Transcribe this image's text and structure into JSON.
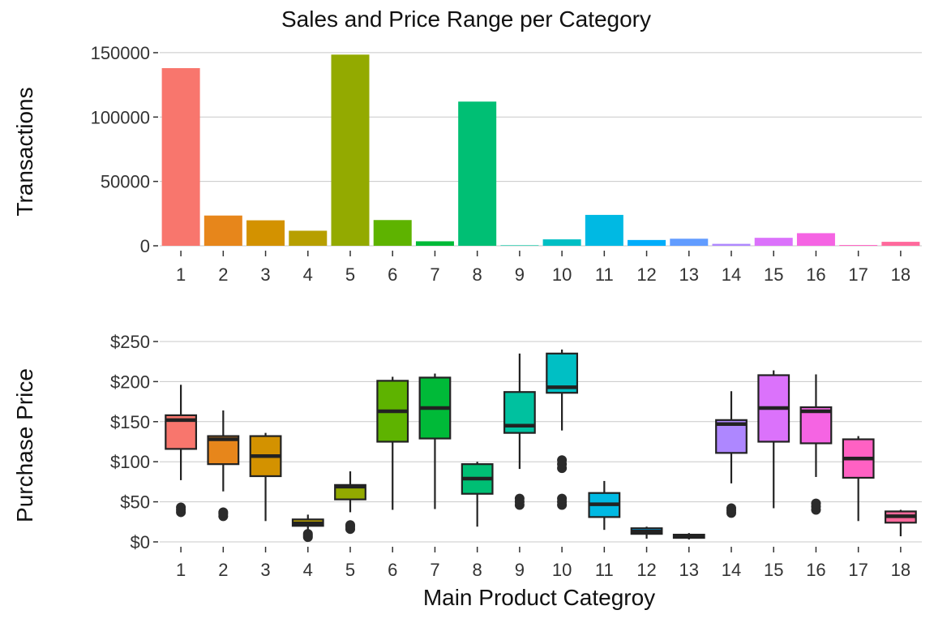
{
  "title": "Sales and Price Range per Category",
  "chart_data": [
    {
      "type": "bar",
      "ylabel": "Transactions",
      "xlabel": "",
      "categories": [
        "1",
        "2",
        "3",
        "4",
        "5",
        "6",
        "7",
        "8",
        "9",
        "10",
        "11",
        "12",
        "13",
        "14",
        "15",
        "16",
        "17",
        "18"
      ],
      "values": [
        138000,
        23500,
        19800,
        11700,
        148500,
        20000,
        3500,
        112000,
        400,
        5000,
        24000,
        4500,
        5500,
        1500,
        6200,
        9800,
        600,
        3100
      ],
      "ylim": [
        0,
        155000
      ],
      "yticks": [
        0,
        50000,
        100000,
        150000
      ],
      "ytick_labels": [
        "0",
        "50000",
        "100000",
        "150000"
      ],
      "grid": true,
      "legend": "none"
    },
    {
      "type": "box",
      "ylabel": "Purchase Price",
      "xlabel": "Main Product Categroy",
      "categories": [
        "1",
        "2",
        "3",
        "4",
        "5",
        "6",
        "7",
        "8",
        "9",
        "10",
        "11",
        "12",
        "13",
        "14",
        "15",
        "16",
        "17",
        "18"
      ],
      "boxes": [
        {
          "whislo": 77,
          "q1": 116,
          "med": 152,
          "q3": 158,
          "whishi": 196,
          "fliers": [
            37,
            40,
            43
          ]
        },
        {
          "whislo": 63,
          "q1": 97,
          "med": 128,
          "q3": 132,
          "whishi": 164,
          "fliers": [
            32,
            35,
            37
          ]
        },
        {
          "whislo": 26,
          "q1": 82,
          "med": 107,
          "q3": 132,
          "whishi": 136,
          "fliers": []
        },
        {
          "whislo": 15,
          "q1": 20,
          "med": 23,
          "q3": 28,
          "whishi": 34,
          "fliers": [
            6,
            8,
            10
          ]
        },
        {
          "whislo": 37,
          "q1": 53,
          "med": 69,
          "q3": 71,
          "whishi": 88,
          "fliers": [
            16,
            19,
            21
          ]
        },
        {
          "whislo": 40,
          "q1": 125,
          "med": 163,
          "q3": 201,
          "whishi": 206,
          "fliers": []
        },
        {
          "whislo": 41,
          "q1": 129,
          "med": 167,
          "q3": 205,
          "whishi": 210,
          "fliers": []
        },
        {
          "whislo": 19,
          "q1": 60,
          "med": 79,
          "q3": 97,
          "whishi": 100,
          "fliers": []
        },
        {
          "whislo": 91,
          "q1": 136,
          "med": 145,
          "q3": 187,
          "whishi": 235,
          "fliers": [
            46,
            50,
            54
          ]
        },
        {
          "whislo": 139,
          "q1": 186,
          "med": 193,
          "q3": 235,
          "whishi": 240,
          "fliers": [
            46,
            50,
            54,
            92,
            97,
            102
          ]
        },
        {
          "whislo": 15,
          "q1": 31,
          "med": 47,
          "q3": 61,
          "whishi": 76,
          "fliers": []
        },
        {
          "whislo": 4,
          "q1": 10,
          "med": 13,
          "q3": 17,
          "whishi": 19,
          "fliers": []
        },
        {
          "whislo": 3,
          "q1": 5,
          "med": 7,
          "q3": 9,
          "whishi": 11,
          "fliers": []
        },
        {
          "whislo": 73,
          "q1": 111,
          "med": 147,
          "q3": 152,
          "whishi": 188,
          "fliers": [
            36,
            39,
            42
          ]
        },
        {
          "whislo": 42,
          "q1": 125,
          "med": 167,
          "q3": 208,
          "whishi": 214,
          "fliers": []
        },
        {
          "whislo": 81,
          "q1": 123,
          "med": 163,
          "q3": 168,
          "whishi": 209,
          "fliers": [
            40,
            44,
            48
          ]
        },
        {
          "whislo": 26,
          "q1": 80,
          "med": 104,
          "q3": 128,
          "whishi": 132,
          "fliers": []
        },
        {
          "whislo": 7,
          "q1": 24,
          "med": 32,
          "q3": 38,
          "whishi": 40,
          "fliers": []
        }
      ],
      "ylim": [
        -3,
        260
      ],
      "yticks": [
        0,
        50,
        100,
        150,
        200,
        250
      ],
      "ytick_labels": [
        "$0",
        "$50",
        "$100",
        "$150",
        "$200",
        "$250"
      ],
      "grid": true,
      "legend": "none"
    }
  ],
  "colors": [
    "#F8766D",
    "#E7861B",
    "#D39200",
    "#B79F00",
    "#93AA00",
    "#5EB300",
    "#00BA38",
    "#00BF74",
    "#00C19F",
    "#00BFC4",
    "#00B9E3",
    "#00ADFA",
    "#619CFF",
    "#AE87FF",
    "#DB72FB",
    "#F564E3",
    "#FF61C3",
    "#FF699C"
  ]
}
